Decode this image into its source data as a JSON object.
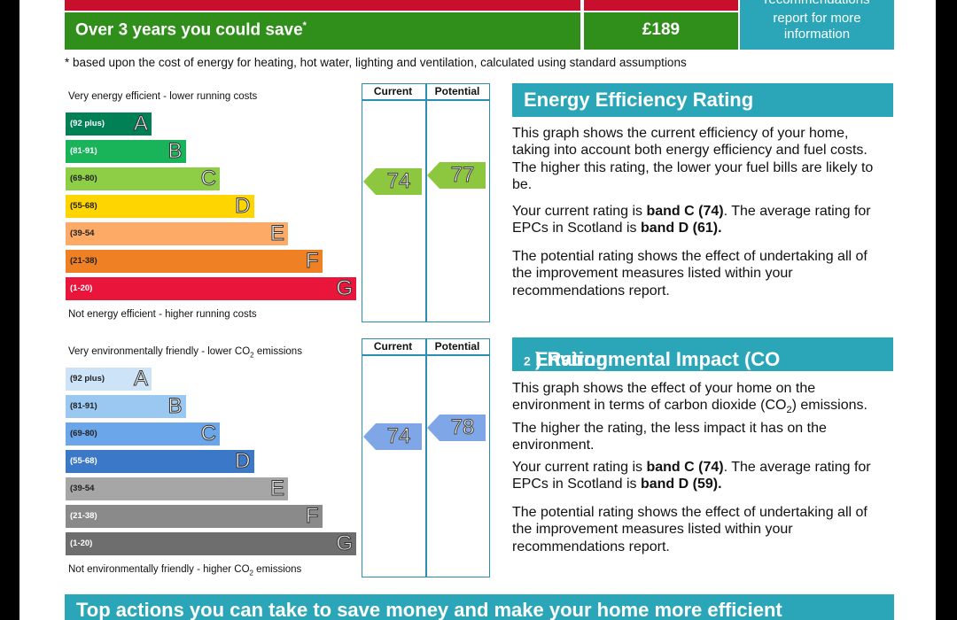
{
  "savings": {
    "label": "Over 3 years you could save",
    "asterisk": "*",
    "value": "£189",
    "reco_line1": "recommendations",
    "reco_line2": "report for more",
    "reco_line3": "information"
  },
  "footnote": "* based upon the cost of energy for heating, hot water, lighting and ventilation, calculated using standard assumptions",
  "energy_chart": {
    "top_caption": "Very energy efficient - lower running costs",
    "bottom_caption": "Not energy efficient - higher running costs",
    "col_current": "Current",
    "col_potential": "Potential",
    "current": 74,
    "potential": 77,
    "current_color": "#8dc63f",
    "potential_color": "#8dc63f",
    "bands": [
      {
        "range": "(92 plus)",
        "letter": "A",
        "color": "#008054"
      },
      {
        "range": "(81-91)",
        "letter": "B",
        "color": "#19b459"
      },
      {
        "range": "(69-80)",
        "letter": "C",
        "color": "#8dce46"
      },
      {
        "range": "(55-68)",
        "letter": "D",
        "color": "#ffd500"
      },
      {
        "range": "(39-54",
        "letter": "E",
        "color": "#fcaa65"
      },
      {
        "range": "(21-38)",
        "letter": "F",
        "color": "#ef8023"
      },
      {
        "range": "(1-20)",
        "letter": "G",
        "color": "#e9153b"
      }
    ]
  },
  "energy_info": {
    "title": "Energy Efficiency Rating",
    "p1": "This graph shows the current efficiency of your home, taking into account both energy efficiency and fuel costs. The higher this rating, the lower your fuel bills are likely to be.",
    "p2_pre": "Your current rating is ",
    "p2_band": "band C (74)",
    "p2_mid": ". The average rating for EPCs in Scotland is ",
    "p2_avg": "band D (61).",
    "p3": "The potential rating shows the effect of undertaking all of the improvement measures listed within your recommendations report."
  },
  "env_chart": {
    "top_caption_pre": "Very environmentally friendly - lower CO",
    "top_caption_sub": "2",
    "top_caption_post": " emissions",
    "bottom_caption_pre": "Not environmentally friendly - higher CO",
    "bottom_caption_sub": "2",
    "bottom_caption_post": " emissions",
    "col_current": "Current",
    "col_potential": "Potential",
    "current": 74,
    "potential": 78,
    "current_color": "#7fa7e8",
    "potential_color": "#7fa7e8",
    "bands": [
      {
        "range": "(92 plus)",
        "letter": "A",
        "color": "#cde3f7"
      },
      {
        "range": "(81-91)",
        "letter": "B",
        "color": "#9ac8f0"
      },
      {
        "range": "(69-80)",
        "letter": "C",
        "color": "#6ba6ea"
      },
      {
        "range": "(55-68)",
        "letter": "D",
        "color": "#3c78c8"
      },
      {
        "range": "(39-54",
        "letter": "E",
        "color": "#a6a6a6"
      },
      {
        "range": "(21-38)",
        "letter": "F",
        "color": "#8a8a8a"
      },
      {
        "range": "(1-20)",
        "letter": "G",
        "color": "#6e6e6e"
      }
    ]
  },
  "env_info": {
    "title_pre": "Environmental Impact (CO",
    "title_sub": "2",
    "title_post": ") Rating",
    "p1_pre": "This graph shows the effect of your home on the environment in terms of carbon dioxide (CO",
    "p1_sub": "2",
    "p1_post": ") emissions. The higher the rating, the less impact it has on the environment.",
    "p2_pre": "Your current rating is ",
    "p2_band": "band C (74)",
    "p2_mid": ". The average rating for EPCs in Scotland is ",
    "p2_avg": "band D (59).",
    "p3": "The potential rating shows the effect of undertaking all of the improvement measures listed within your recommendations report."
  },
  "bottom_banner": "Top actions you can take to save money and make your home more efficient"
}
